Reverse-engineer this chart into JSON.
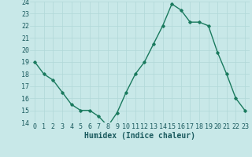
{
  "x": [
    0,
    1,
    2,
    3,
    4,
    5,
    6,
    7,
    8,
    9,
    10,
    11,
    12,
    13,
    14,
    15,
    16,
    17,
    18,
    19,
    20,
    21,
    22,
    23
  ],
  "y": [
    19,
    18,
    17.5,
    16.5,
    15.5,
    15,
    15,
    14.5,
    13.7,
    14.8,
    16.5,
    18,
    19,
    20.5,
    22,
    23.8,
    23.3,
    22.3,
    22.3,
    22,
    19.8,
    18,
    16,
    15
  ],
  "line_color": "#1a7a5e",
  "bg_color": "#c8e8e8",
  "grid_color": "#b0d8d8",
  "xlabel": "Humidex (Indice chaleur)",
  "ylim": [
    14,
    24
  ],
  "xlim": [
    -0.5,
    23.5
  ],
  "yticks": [
    14,
    15,
    16,
    17,
    18,
    19,
    20,
    21,
    22,
    23,
    24
  ],
  "xticks": [
    0,
    1,
    2,
    3,
    4,
    5,
    6,
    7,
    8,
    9,
    10,
    11,
    12,
    13,
    14,
    15,
    16,
    17,
    18,
    19,
    20,
    21,
    22,
    23
  ],
  "xlabel_fontsize": 7,
  "tick_fontsize": 6,
  "marker": "D",
  "marker_size": 1.8,
  "linewidth": 1.0
}
